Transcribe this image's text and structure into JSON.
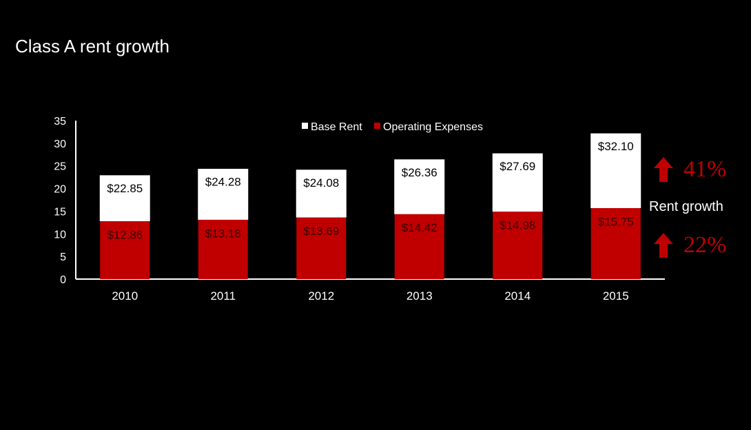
{
  "title": "Class A rent growth",
  "colors": {
    "background": "#000000",
    "base_rent": "#ffffff",
    "operating_expenses": "#c00000",
    "axis": "#ffffff",
    "growth_text": "#c00000"
  },
  "chart_data": {
    "type": "bar",
    "stacked": true,
    "categories": [
      "2010",
      "2011",
      "2012",
      "2013",
      "2014",
      "2015"
    ],
    "series": [
      {
        "name": "Operating Expenses",
        "color": "#c00000",
        "values": [
          12.86,
          13.18,
          13.69,
          14.42,
          14.98,
          15.75
        ],
        "labels": [
          "$12.86",
          "$13.18",
          "$13.69",
          "$14.42",
          "$14.98",
          "$15.75"
        ]
      },
      {
        "name": "Base Rent",
        "color": "#ffffff",
        "values": [
          9.99,
          11.1,
          10.39,
          11.94,
          12.71,
          16.35
        ],
        "labels": [
          "$22.85",
          "$24.28",
          "$24.08",
          "$26.36",
          "$27.69",
          "$32.10"
        ]
      }
    ],
    "legend": [
      "Base Rent",
      "Operating Expenses"
    ],
    "legend_placement": "top-center",
    "ylim": [
      0,
      35
    ],
    "yticks": [
      "0",
      "5",
      "10",
      "15",
      "20",
      "25",
      "30",
      "35"
    ],
    "grid": false
  },
  "side_panel": {
    "top_growth": "41%",
    "label": "Rent growth",
    "bottom_growth": "22%",
    "top_icon": "up-arrow-icon",
    "bottom_icon": "up-arrow-icon"
  }
}
